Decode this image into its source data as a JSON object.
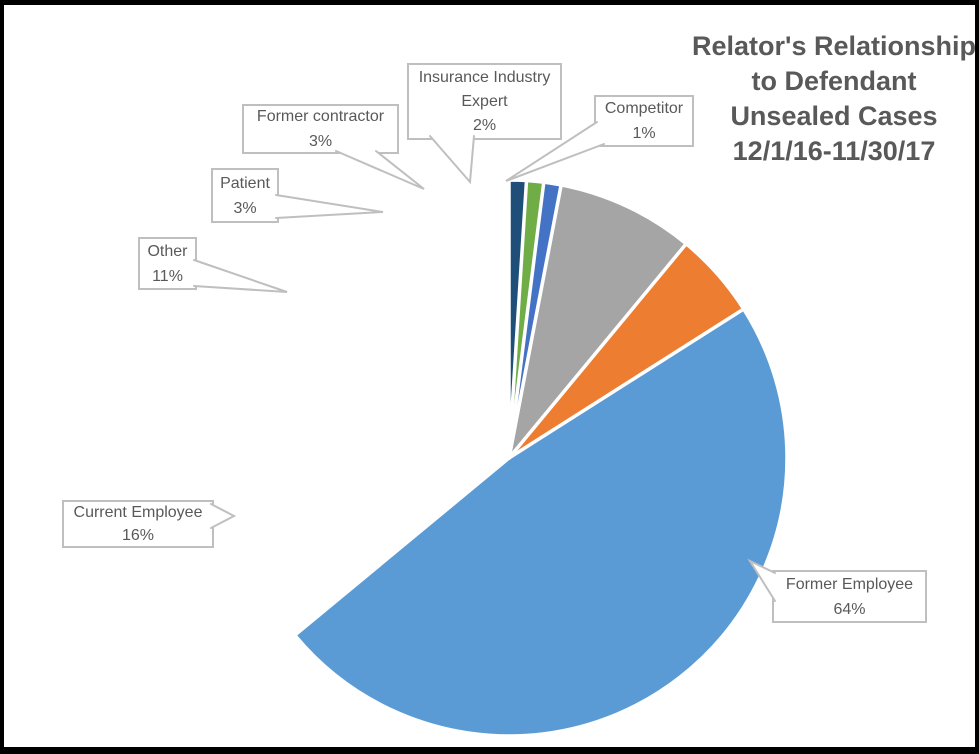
{
  "title": {
    "lines": [
      "Relator's Relationship",
      "to Defendant",
      "Unsealed Cases",
      "12/1/16-11/30/17"
    ]
  },
  "chart_data": {
    "type": "pie",
    "title": "Relator's Relationship to Defendant Unsealed Cases 12/1/16-11/30/17",
    "legend": "none",
    "label_style": "callout-with-percentage",
    "start_angle_deg": 0,
    "direction": "clockwise",
    "slices": [
      {
        "label": "Former Employee",
        "value": 64,
        "pct_label": "64%",
        "color": "#5B9BD5"
      },
      {
        "label": "Current Employee",
        "value": 16,
        "pct_label": "16%",
        "color": "#ED7D31"
      },
      {
        "label": "Other",
        "value": 11,
        "pct_label": "11%",
        "color": "#A5A5A5"
      },
      {
        "label": "Patient",
        "value": 3,
        "pct_label": "3%",
        "color": "#FFC000"
      },
      {
        "label": "Former contractor",
        "value": 3,
        "pct_label": "3%",
        "color": "#4472C4"
      },
      {
        "label": "Insurance Industry Expert",
        "value": 2,
        "pct_label": "2%",
        "color": "#70AD47"
      },
      {
        "label": "Competitor",
        "value": 1,
        "pct_label": "1%",
        "color": "#1F4E79"
      }
    ]
  },
  "colors": {
    "title_text": "#595959",
    "label_text": "#595959",
    "callout_border": "#BFBFBF",
    "slice_border": "#FFFFFF",
    "frame_border": "#000000",
    "background": "#FFFFFF"
  }
}
